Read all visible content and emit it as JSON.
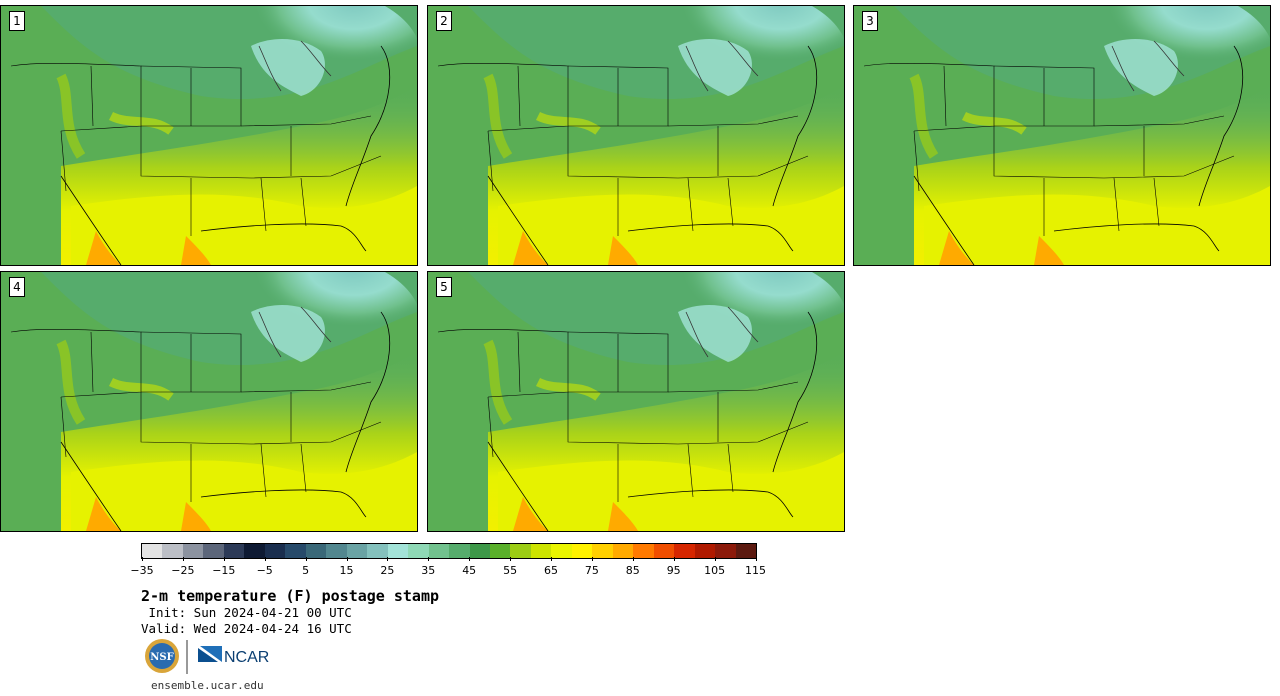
{
  "panels": [
    {
      "label": "1"
    },
    {
      "label": "2"
    },
    {
      "label": "3"
    },
    {
      "label": "4"
    },
    {
      "label": "5"
    }
  ],
  "colorbar": {
    "colors": [
      "#e3e3e3",
      "#bcbfc6",
      "#8c93a0",
      "#5c667a",
      "#2c3a57",
      "#0e1a33",
      "#1a2e4e",
      "#274a6a",
      "#3a6878",
      "#52878f",
      "#6aa3a4",
      "#84c1bd",
      "#a3e3d8",
      "#8fd9b6",
      "#72c28e",
      "#56ac6c",
      "#3d9848",
      "#5ab02a",
      "#9ccd14",
      "#cde400",
      "#eaf500",
      "#fff200",
      "#ffd000",
      "#ffaa00",
      "#ff7a00",
      "#f04e00",
      "#d62600",
      "#b01a00",
      "#8c1a0a",
      "#5c1a10"
    ],
    "min": -35,
    "max": 115,
    "tick_labels": [
      "−35",
      "−25",
      "−15",
      "−5",
      "5",
      "15",
      "25",
      "35",
      "45",
      "55",
      "65",
      "75",
      "85",
      "95",
      "105",
      "115"
    ]
  },
  "title": "2-m temperature (F) postage stamp",
  "init": " Init: Sun 2024-04-21 00 UTC",
  "valid": "Valid: Wed 2024-04-24 16 UTC",
  "logos": {
    "nsf": "NSF",
    "ncar": "NCAR"
  },
  "site": "ensemble.ucar.edu"
}
